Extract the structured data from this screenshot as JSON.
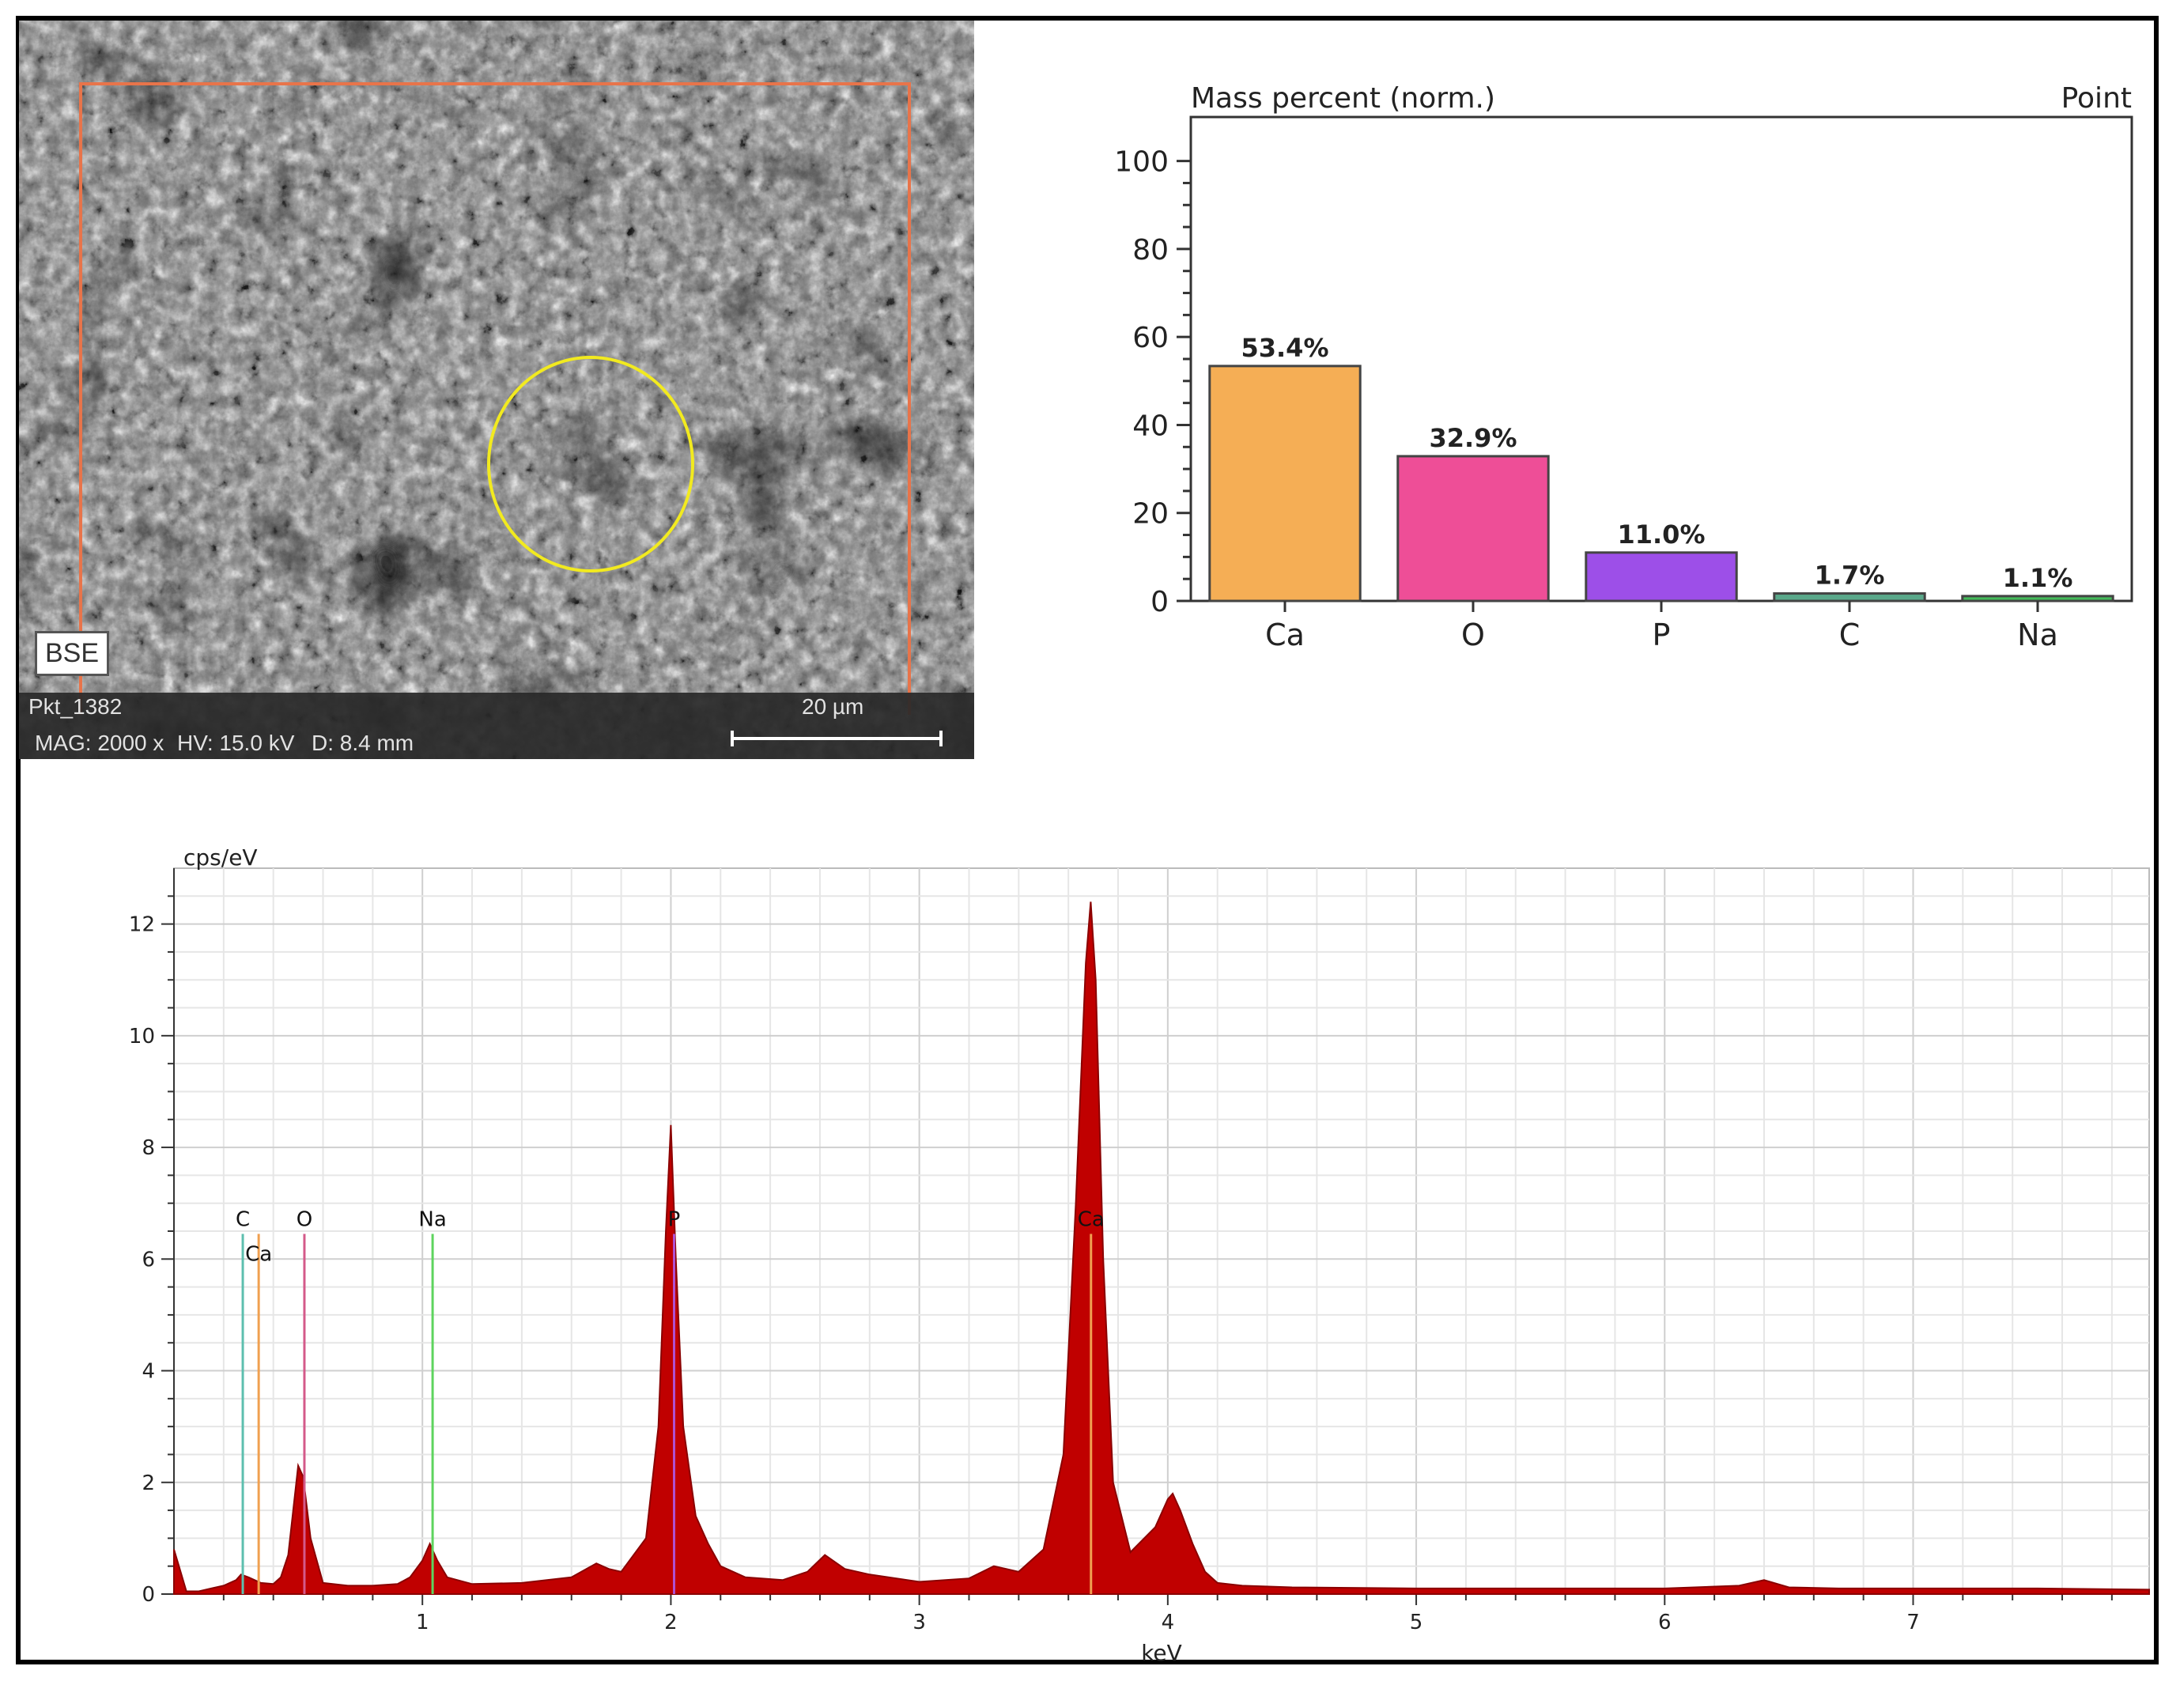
{
  "sem_image": {
    "detector_label": "BSE",
    "point_id": "Pkt_1382",
    "magnification": "MAG: 2000 x",
    "voltage": "HV: 15.0 kV",
    "working_distance": "D: 8.4 mm",
    "scale_label": "20 µm",
    "overlay_colors": {
      "roi": "#e8744a",
      "spot": "#f2ea1f"
    }
  },
  "chart_data": [
    {
      "type": "bar",
      "title": "Mass percent (norm.)",
      "corner_label": "Point",
      "categories": [
        "Ca",
        "O",
        "P",
        "C",
        "Na"
      ],
      "values": [
        53.4,
        32.9,
        11.0,
        1.7,
        1.1
      ],
      "value_labels": [
        "53.4%",
        "32.9%",
        "11.0%",
        "1.7%",
        "1.1%"
      ],
      "colors": [
        "#f5ae55",
        "#ee4e97",
        "#9d4fe8",
        "#5aa88a",
        "#44bb5a"
      ],
      "ylim": [
        0,
        110
      ],
      "yticks": [
        0,
        20,
        40,
        60,
        80,
        100
      ],
      "grid": false
    },
    {
      "type": "area",
      "ylabel": "cps/eV",
      "xlabel": "keV",
      "xlim": [
        0.0,
        7.95
      ],
      "ylim": [
        0,
        13
      ],
      "xticks": [
        1,
        2,
        3,
        4,
        5,
        6,
        7
      ],
      "yticks": [
        0,
        2,
        4,
        6,
        8,
        10,
        12
      ],
      "grid": true,
      "fill_color": "#c00000",
      "series": [
        {
          "x": [
            0.0,
            0.02,
            0.05,
            0.1,
            0.15,
            0.2,
            0.25,
            0.27,
            0.3,
            0.35,
            0.4,
            0.43,
            0.46,
            0.5,
            0.52,
            0.55,
            0.6,
            0.7,
            0.8,
            0.9,
            0.95,
            1.0,
            1.03,
            1.06,
            1.1,
            1.2,
            1.4,
            1.6,
            1.7,
            1.75,
            1.8,
            1.9,
            1.95,
            1.98,
            2.0,
            2.02,
            2.05,
            2.1,
            2.15,
            2.2,
            2.3,
            2.45,
            2.55,
            2.62,
            2.7,
            2.8,
            3.0,
            3.2,
            3.3,
            3.4,
            3.5,
            3.58,
            3.63,
            3.67,
            3.69,
            3.71,
            3.74,
            3.78,
            3.85,
            3.95,
            4.0,
            4.02,
            4.05,
            4.1,
            4.15,
            4.2,
            4.3,
            4.5,
            5.0,
            5.5,
            6.0,
            6.3,
            6.4,
            6.5,
            6.7,
            7.0,
            7.5,
            7.95
          ],
          "y": [
            0.8,
            0.5,
            0.05,
            0.05,
            0.1,
            0.15,
            0.25,
            0.35,
            0.3,
            0.2,
            0.18,
            0.3,
            0.7,
            2.3,
            2.1,
            1.0,
            0.2,
            0.15,
            0.15,
            0.18,
            0.3,
            0.6,
            0.9,
            0.6,
            0.3,
            0.18,
            0.2,
            0.3,
            0.55,
            0.45,
            0.4,
            1.0,
            3.0,
            6.5,
            8.4,
            6.0,
            3.0,
            1.4,
            0.9,
            0.5,
            0.3,
            0.25,
            0.4,
            0.7,
            0.45,
            0.35,
            0.22,
            0.28,
            0.5,
            0.4,
            0.8,
            2.5,
            7.0,
            11.3,
            12.4,
            11.0,
            6.0,
            2.0,
            0.75,
            1.2,
            1.7,
            1.8,
            1.5,
            0.9,
            0.4,
            0.2,
            0.15,
            0.12,
            0.1,
            0.1,
            0.1,
            0.15,
            0.25,
            0.12,
            0.1,
            0.1,
            0.1,
            0.08
          ]
        }
      ],
      "element_markers": [
        {
          "element": "C",
          "energy": 0.277,
          "color": "#5dbfae"
        },
        {
          "element": "Ca",
          "energy": 0.341,
          "color": "#f0a050"
        },
        {
          "element": "O",
          "energy": 0.525,
          "color": "#d45a8a"
        },
        {
          "element": "Na",
          "energy": 1.041,
          "color": "#5ed45e"
        },
        {
          "element": "P",
          "energy": 2.013,
          "color": "#b050d0"
        },
        {
          "element": "Ca",
          "energy": 3.691,
          "color": "#f0a050"
        }
      ]
    }
  ]
}
